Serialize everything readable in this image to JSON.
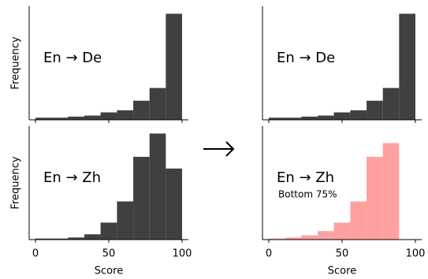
{
  "chart_data": [
    {
      "type": "histogram",
      "bins": [
        0,
        11.1,
        22.2,
        33.3,
        44.4,
        55.6,
        66.7,
        77.8,
        88.9,
        100
      ],
      "values": [
        0.02,
        0.02,
        0.03,
        0.04,
        0.07,
        0.09,
        0.18,
        0.3,
        1.0
      ],
      "color": "#404040",
      "xlim": [
        -4.3,
        104.3
      ],
      "ylim": [
        0,
        1.07
      ],
      "xticks": [
        0,
        50,
        100
      ],
      "xtick_labels": false,
      "ylabel": "Frequency",
      "annotations": [
        "En → De"
      ]
    },
    {
      "type": "histogram",
      "bins": [
        0,
        11.1,
        22.2,
        33.3,
        44.4,
        55.6,
        66.7,
        77.8,
        88.9,
        100
      ],
      "values": [
        0.02,
        0.02,
        0.03,
        0.04,
        0.07,
        0.09,
        0.18,
        0.3,
        1.0
      ],
      "color": "#404040",
      "xlim": [
        -4.3,
        104.3
      ],
      "ylim": [
        0,
        1.07
      ],
      "xticks": [
        0,
        50,
        100
      ],
      "xtick_labels": false,
      "annotations": [
        "En → De"
      ]
    },
    {
      "type": "histogram",
      "bins": [
        0,
        11.1,
        22.2,
        33.3,
        44.4,
        55.6,
        66.7,
        77.8,
        88.9,
        100
      ],
      "values": [
        0.01,
        0.01,
        0.02,
        0.05,
        0.16,
        0.36,
        0.78,
        1.0,
        0.67
      ],
      "color": "#404040",
      "xlim": [
        -4.3,
        104.3
      ],
      "ylim": [
        0,
        1.07
      ],
      "xticks": [
        0,
        50,
        100
      ],
      "xtick_labels": true,
      "ylabel": "Frequency",
      "xlabel": "Score",
      "annotations": [
        "En → Zh"
      ]
    },
    {
      "type": "histogram",
      "bins": [
        0,
        11.1,
        22.2,
        33.3,
        44.4,
        55.6,
        66.7,
        77.8,
        88.9
      ],
      "values": [
        0.01,
        0.02,
        0.04,
        0.08,
        0.16,
        0.36,
        0.78,
        0.91
      ],
      "color": "#ffa0a0",
      "xlim": [
        -4.3,
        104.3
      ],
      "ylim": [
        0,
        1.07
      ],
      "xticks": [
        0,
        50,
        100
      ],
      "xtick_labels": true,
      "xlabel": "Score",
      "annotations": [
        "En → Zh",
        "Bottom 75%"
      ]
    }
  ]
}
